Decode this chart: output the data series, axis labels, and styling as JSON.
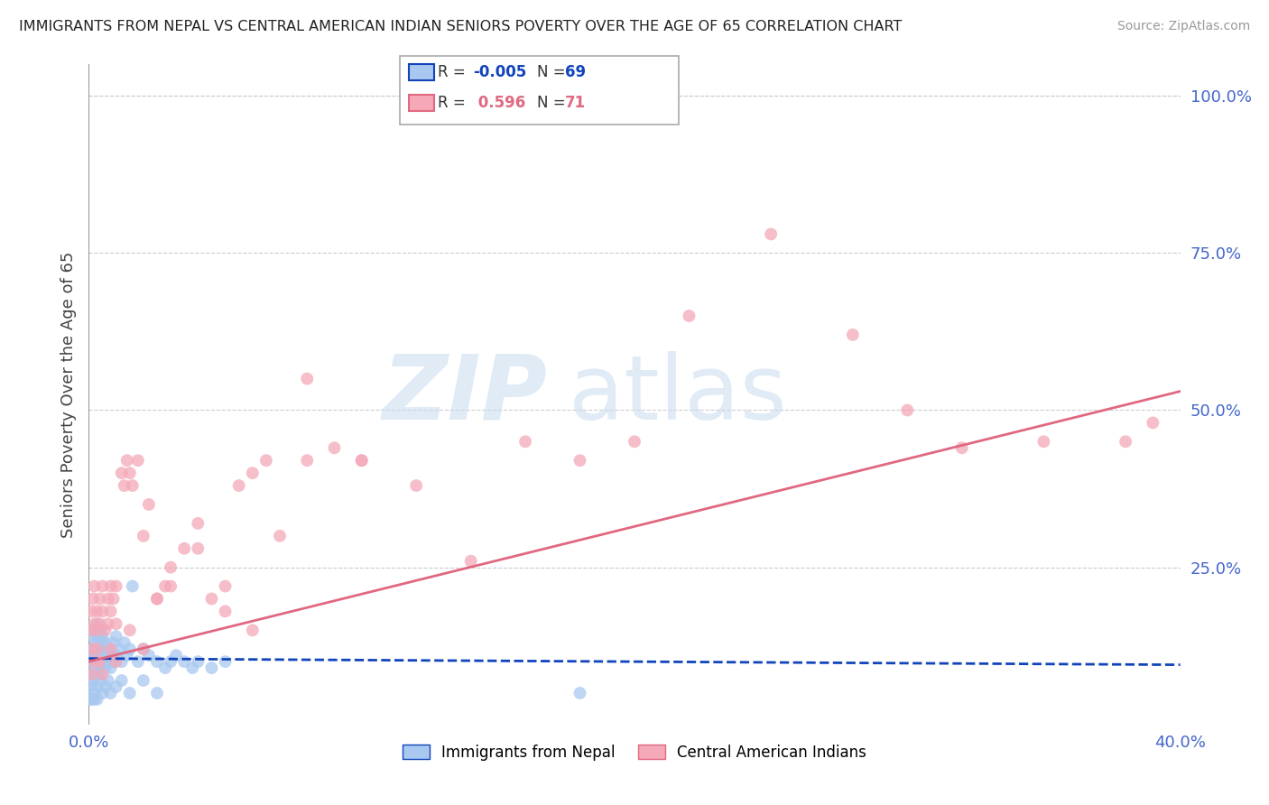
{
  "title": "IMMIGRANTS FROM NEPAL VS CENTRAL AMERICAN INDIAN SENIORS POVERTY OVER THE AGE OF 65 CORRELATION CHART",
  "source": "Source: ZipAtlas.com",
  "ylabel": "Seniors Poverty Over the Age of 65",
  "right_yticks": [
    "100.0%",
    "75.0%",
    "50.0%",
    "25.0%"
  ],
  "right_ytick_vals": [
    1.0,
    0.75,
    0.5,
    0.25
  ],
  "xlim": [
    0.0,
    0.4
  ],
  "ylim": [
    0.0,
    1.05
  ],
  "grid_color": "#cccccc",
  "background_color": "#ffffff",
  "nepal_color": "#a8c8f0",
  "nepal_line_color": "#1144bb",
  "central_am_color": "#f4a8b8",
  "central_am_line_color": "#e06880",
  "legend_label_nepal": "Immigrants from Nepal",
  "legend_label_central": "Central American Indians",
  "nepal_x": [
    0.0005,
    0.001,
    0.001,
    0.0015,
    0.0015,
    0.002,
    0.002,
    0.0025,
    0.0025,
    0.003,
    0.003,
    0.003,
    0.0035,
    0.0035,
    0.004,
    0.004,
    0.004,
    0.0045,
    0.005,
    0.005,
    0.005,
    0.006,
    0.006,
    0.006,
    0.007,
    0.007,
    0.008,
    0.008,
    0.009,
    0.009,
    0.01,
    0.01,
    0.011,
    0.012,
    0.013,
    0.014,
    0.015,
    0.016,
    0.018,
    0.02,
    0.022,
    0.025,
    0.028,
    0.03,
    0.032,
    0.035,
    0.038,
    0.04,
    0.045,
    0.05,
    0.0008,
    0.0012,
    0.002,
    0.003,
    0.004,
    0.005,
    0.006,
    0.007,
    0.008,
    0.01,
    0.012,
    0.015,
    0.02,
    0.025,
    0.18,
    0.0005,
    0.001,
    0.002,
    0.003
  ],
  "nepal_y": [
    0.1,
    0.12,
    0.08,
    0.14,
    0.1,
    0.15,
    0.11,
    0.13,
    0.09,
    0.12,
    0.16,
    0.1,
    0.14,
    0.08,
    0.15,
    0.11,
    0.09,
    0.13,
    0.12,
    0.1,
    0.14,
    0.11,
    0.09,
    0.13,
    0.1,
    0.12,
    0.11,
    0.09,
    0.13,
    0.1,
    0.14,
    0.11,
    0.12,
    0.1,
    0.13,
    0.11,
    0.12,
    0.22,
    0.1,
    0.12,
    0.11,
    0.1,
    0.09,
    0.1,
    0.11,
    0.1,
    0.09,
    0.1,
    0.09,
    0.1,
    0.06,
    0.07,
    0.05,
    0.06,
    0.07,
    0.05,
    0.06,
    0.07,
    0.05,
    0.06,
    0.07,
    0.05,
    0.07,
    0.05,
    0.05,
    0.04,
    0.04,
    0.04,
    0.04
  ],
  "central_x": [
    0.0005,
    0.001,
    0.001,
    0.0015,
    0.002,
    0.002,
    0.003,
    0.003,
    0.004,
    0.004,
    0.005,
    0.005,
    0.006,
    0.007,
    0.007,
    0.008,
    0.008,
    0.009,
    0.01,
    0.01,
    0.012,
    0.013,
    0.014,
    0.015,
    0.016,
    0.018,
    0.02,
    0.022,
    0.025,
    0.028,
    0.03,
    0.035,
    0.04,
    0.045,
    0.05,
    0.055,
    0.06,
    0.065,
    0.07,
    0.08,
    0.09,
    0.1,
    0.12,
    0.14,
    0.16,
    0.18,
    0.2,
    0.22,
    0.25,
    0.28,
    0.3,
    0.32,
    0.35,
    0.38,
    0.39,
    0.001,
    0.002,
    0.003,
    0.004,
    0.005,
    0.008,
    0.01,
    0.015,
    0.02,
    0.025,
    0.03,
    0.04,
    0.05,
    0.06,
    0.08,
    0.1
  ],
  "central_y": [
    0.15,
    0.18,
    0.12,
    0.2,
    0.16,
    0.22,
    0.18,
    0.15,
    0.2,
    0.16,
    0.18,
    0.22,
    0.15,
    0.2,
    0.16,
    0.22,
    0.18,
    0.2,
    0.16,
    0.22,
    0.4,
    0.38,
    0.42,
    0.4,
    0.38,
    0.42,
    0.3,
    0.35,
    0.2,
    0.22,
    0.25,
    0.28,
    0.32,
    0.2,
    0.22,
    0.38,
    0.4,
    0.42,
    0.3,
    0.42,
    0.44,
    0.42,
    0.38,
    0.26,
    0.45,
    0.42,
    0.45,
    0.65,
    0.78,
    0.62,
    0.5,
    0.44,
    0.45,
    0.45,
    0.48,
    0.08,
    0.1,
    0.12,
    0.1,
    0.08,
    0.12,
    0.1,
    0.15,
    0.12,
    0.2,
    0.22,
    0.28,
    0.18,
    0.15,
    0.55,
    0.42
  ],
  "nepal_line_y0": 0.105,
  "nepal_line_y1": 0.095,
  "central_line_y0": 0.1,
  "central_line_y1": 0.53
}
